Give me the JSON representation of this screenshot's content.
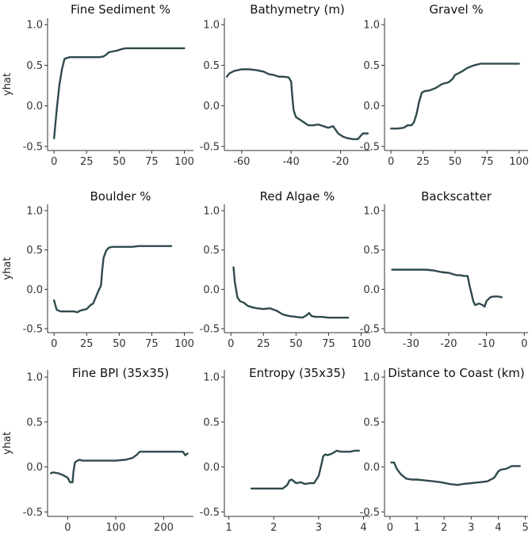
{
  "colors": {
    "line": "#2f4a4d",
    "axis": "#333333",
    "text": "#111111"
  },
  "shared_y": {
    "label": "yhat",
    "ticks": [
      1.0,
      0.5,
      0.0,
      -0.5
    ],
    "tick_labels": [
      "1.0",
      "0.5",
      "0.0",
      "-0.5"
    ],
    "ylim": [
      -0.55,
      1.08
    ]
  },
  "chart_data": [
    {
      "type": "line",
      "title": "Fine Sediment %",
      "xlabel": "",
      "ylabel": "yhat",
      "xlim": [
        -5,
        107
      ],
      "xticks": [
        0,
        25,
        50,
        75,
        100
      ],
      "xtick_labels": [
        "0",
        "25",
        "50",
        "75",
        "100"
      ],
      "x": [
        0,
        2,
        4,
        6,
        8,
        10,
        12,
        15,
        20,
        25,
        30,
        35,
        38,
        40,
        42,
        45,
        48,
        50,
        52,
        55,
        60,
        70,
        80,
        90,
        100
      ],
      "y": [
        -0.4,
        -0.05,
        0.25,
        0.45,
        0.58,
        0.59,
        0.6,
        0.6,
        0.6,
        0.6,
        0.6,
        0.6,
        0.61,
        0.63,
        0.66,
        0.67,
        0.68,
        0.69,
        0.7,
        0.71,
        0.71,
        0.71,
        0.71,
        0.71,
        0.71
      ]
    },
    {
      "type": "line",
      "title": "Bathymetry (m)",
      "xlabel": "",
      "ylabel": "yhat",
      "xlim": [
        -67,
        -8
      ],
      "xticks": [
        -60,
        -40,
        -20
      ],
      "xtick_labels": [
        "-60",
        "-40",
        "-20"
      ],
      "x": [
        -66,
        -65,
        -63,
        -60,
        -57,
        -54,
        -51,
        -49,
        -47,
        -45,
        -43,
        -41,
        -40,
        -39.5,
        -39,
        -38.5,
        -38,
        -37,
        -35,
        -33,
        -31,
        -29,
        -27,
        -25,
        -23,
        -21,
        -19,
        -17,
        -15,
        -13,
        -11,
        -9
      ],
      "y": [
        0.36,
        0.4,
        0.43,
        0.45,
        0.45,
        0.44,
        0.42,
        0.39,
        0.38,
        0.36,
        0.36,
        0.35,
        0.3,
        0.1,
        -0.05,
        -0.1,
        -0.14,
        -0.16,
        -0.2,
        -0.24,
        -0.24,
        -0.23,
        -0.25,
        -0.27,
        -0.25,
        -0.34,
        -0.38,
        -0.4,
        -0.41,
        -0.41,
        -0.34,
        -0.34
      ]
    },
    {
      "type": "line",
      "title": "Gravel %",
      "xlabel": "",
      "ylabel": "yhat",
      "xlim": [
        -5,
        107
      ],
      "xticks": [
        0,
        25,
        50,
        75,
        100
      ],
      "xtick_labels": [
        "0",
        "25",
        "50",
        "75",
        "100"
      ],
      "x": [
        0,
        5,
        10,
        13,
        16,
        18,
        20,
        22,
        24,
        26,
        30,
        35,
        40,
        45,
        48,
        50,
        55,
        60,
        65,
        70,
        75,
        80,
        90,
        100
      ],
      "y": [
        -0.28,
        -0.28,
        -0.27,
        -0.24,
        -0.24,
        -0.2,
        -0.1,
        0.05,
        0.16,
        0.18,
        0.19,
        0.22,
        0.27,
        0.29,
        0.33,
        0.38,
        0.42,
        0.47,
        0.5,
        0.52,
        0.52,
        0.52,
        0.52,
        0.52
      ]
    },
    {
      "type": "line",
      "title": "Boulder %",
      "xlabel": "",
      "ylabel": "yhat",
      "xlim": [
        -5,
        107
      ],
      "xticks": [
        0,
        25,
        50,
        75,
        100
      ],
      "xtick_labels": [
        "0",
        "25",
        "50",
        "75",
        "100"
      ],
      "x": [
        0,
        2,
        5,
        10,
        15,
        18,
        20,
        25,
        28,
        30,
        32,
        34,
        36,
        37,
        38,
        40,
        42,
        45,
        50,
        55,
        60,
        65,
        70,
        80,
        90
      ],
      "y": [
        -0.14,
        -0.26,
        -0.28,
        -0.28,
        -0.28,
        -0.29,
        -0.27,
        -0.25,
        -0.2,
        -0.18,
        -0.1,
        -0.02,
        0.05,
        0.25,
        0.4,
        0.49,
        0.53,
        0.54,
        0.54,
        0.54,
        0.54,
        0.55,
        0.55,
        0.55,
        0.55
      ]
    },
    {
      "type": "line",
      "title": "Red Algae %",
      "xlabel": "",
      "ylabel": "yhat",
      "xlim": [
        -5,
        107
      ],
      "xticks": [
        0,
        25,
        50,
        75,
        100
      ],
      "xtick_labels": [
        "0",
        "25",
        "50",
        "75",
        "100"
      ],
      "x": [
        2,
        3,
        5,
        7,
        10,
        13,
        17,
        20,
        25,
        30,
        35,
        40,
        45,
        50,
        55,
        58,
        60,
        62,
        65,
        70,
        75,
        80,
        90
      ],
      "y": [
        0.28,
        0.1,
        -0.1,
        -0.15,
        -0.17,
        -0.21,
        -0.23,
        -0.24,
        -0.25,
        -0.24,
        -0.27,
        -0.32,
        -0.34,
        -0.35,
        -0.36,
        -0.33,
        -0.3,
        -0.34,
        -0.35,
        -0.35,
        -0.36,
        -0.36,
        -0.36
      ]
    },
    {
      "type": "line",
      "title": "Backscatter",
      "xlabel": "",
      "ylabel": "yhat",
      "xlim": [
        -37,
        1
      ],
      "xticks": [
        -30,
        -20,
        -10,
        0
      ],
      "xtick_labels": [
        "-30",
        "-20",
        "-10",
        "0"
      ],
      "x": [
        -35,
        -32,
        -29,
        -26,
        -24,
        -22,
        -20,
        -18,
        -17,
        -16,
        -15,
        -14.5,
        -14,
        -13.5,
        -13,
        -12,
        -11,
        -10.5,
        -10,
        -9,
        -8,
        -7,
        -6
      ],
      "y": [
        0.25,
        0.25,
        0.25,
        0.25,
        0.24,
        0.22,
        0.21,
        0.18,
        0.18,
        0.17,
        0.17,
        0.05,
        -0.05,
        -0.15,
        -0.2,
        -0.18,
        -0.2,
        -0.22,
        -0.15,
        -0.1,
        -0.09,
        -0.09,
        -0.1
      ]
    },
    {
      "type": "line",
      "title": "Fine BPI (35x35)",
      "xlabel": "",
      "ylabel": "yhat",
      "xlim": [
        -42,
        262
      ],
      "xticks": [
        0,
        100,
        200
      ],
      "xtick_labels": [
        "0",
        "100",
        "200"
      ],
      "x": [
        -35,
        -30,
        -20,
        -10,
        0,
        5,
        10,
        12,
        15,
        20,
        25,
        30,
        50,
        80,
        100,
        120,
        135,
        145,
        150,
        160,
        200,
        240,
        245,
        250
      ],
      "y": [
        -0.07,
        -0.06,
        -0.07,
        -0.09,
        -0.12,
        -0.17,
        -0.17,
        -0.05,
        0.05,
        0.07,
        0.08,
        0.07,
        0.07,
        0.07,
        0.07,
        0.08,
        0.1,
        0.14,
        0.17,
        0.17,
        0.17,
        0.17,
        0.13,
        0.15
      ]
    },
    {
      "type": "line",
      "title": "Entropy (35x35)",
      "xlabel": "",
      "ylabel": "yhat",
      "xlim": [
        0.9,
        4.15
      ],
      "xticks": [
        1,
        2,
        3,
        4
      ],
      "xtick_labels": [
        "1",
        "2",
        "3",
        "4"
      ],
      "x": [
        1.5,
        1.8,
        2.0,
        2.2,
        2.3,
        2.35,
        2.4,
        2.5,
        2.6,
        2.7,
        2.8,
        2.9,
        3.0,
        3.05,
        3.1,
        3.15,
        3.2,
        3.3,
        3.4,
        3.5,
        3.6,
        3.7,
        3.8,
        3.9
      ],
      "y": [
        -0.24,
        -0.24,
        -0.24,
        -0.24,
        -0.2,
        -0.15,
        -0.14,
        -0.18,
        -0.17,
        -0.19,
        -0.18,
        -0.18,
        -0.1,
        0.0,
        0.12,
        0.14,
        0.13,
        0.15,
        0.18,
        0.17,
        0.17,
        0.17,
        0.18,
        0.18
      ]
    },
    {
      "type": "line",
      "title": "Distance to Coast (km)",
      "xlabel": "",
      "ylabel": "yhat",
      "xlim": [
        -0.2,
        5.1
      ],
      "xticks": [
        0,
        1,
        2,
        3,
        4,
        5
      ],
      "xtick_labels": [
        "0",
        "1",
        "2",
        "3",
        "4",
        "5"
      ],
      "x": [
        0.05,
        0.15,
        0.25,
        0.4,
        0.6,
        0.8,
        1.0,
        1.3,
        1.6,
        1.9,
        2.2,
        2.5,
        2.7,
        3.0,
        3.3,
        3.6,
        3.85,
        4.0,
        4.1,
        4.3,
        4.5,
        4.8
      ],
      "y": [
        0.05,
        0.05,
        -0.02,
        -0.08,
        -0.13,
        -0.14,
        -0.14,
        -0.15,
        -0.16,
        -0.17,
        -0.19,
        -0.2,
        -0.19,
        -0.18,
        -0.17,
        -0.16,
        -0.12,
        -0.05,
        -0.03,
        -0.02,
        0.01,
        0.01
      ]
    }
  ]
}
